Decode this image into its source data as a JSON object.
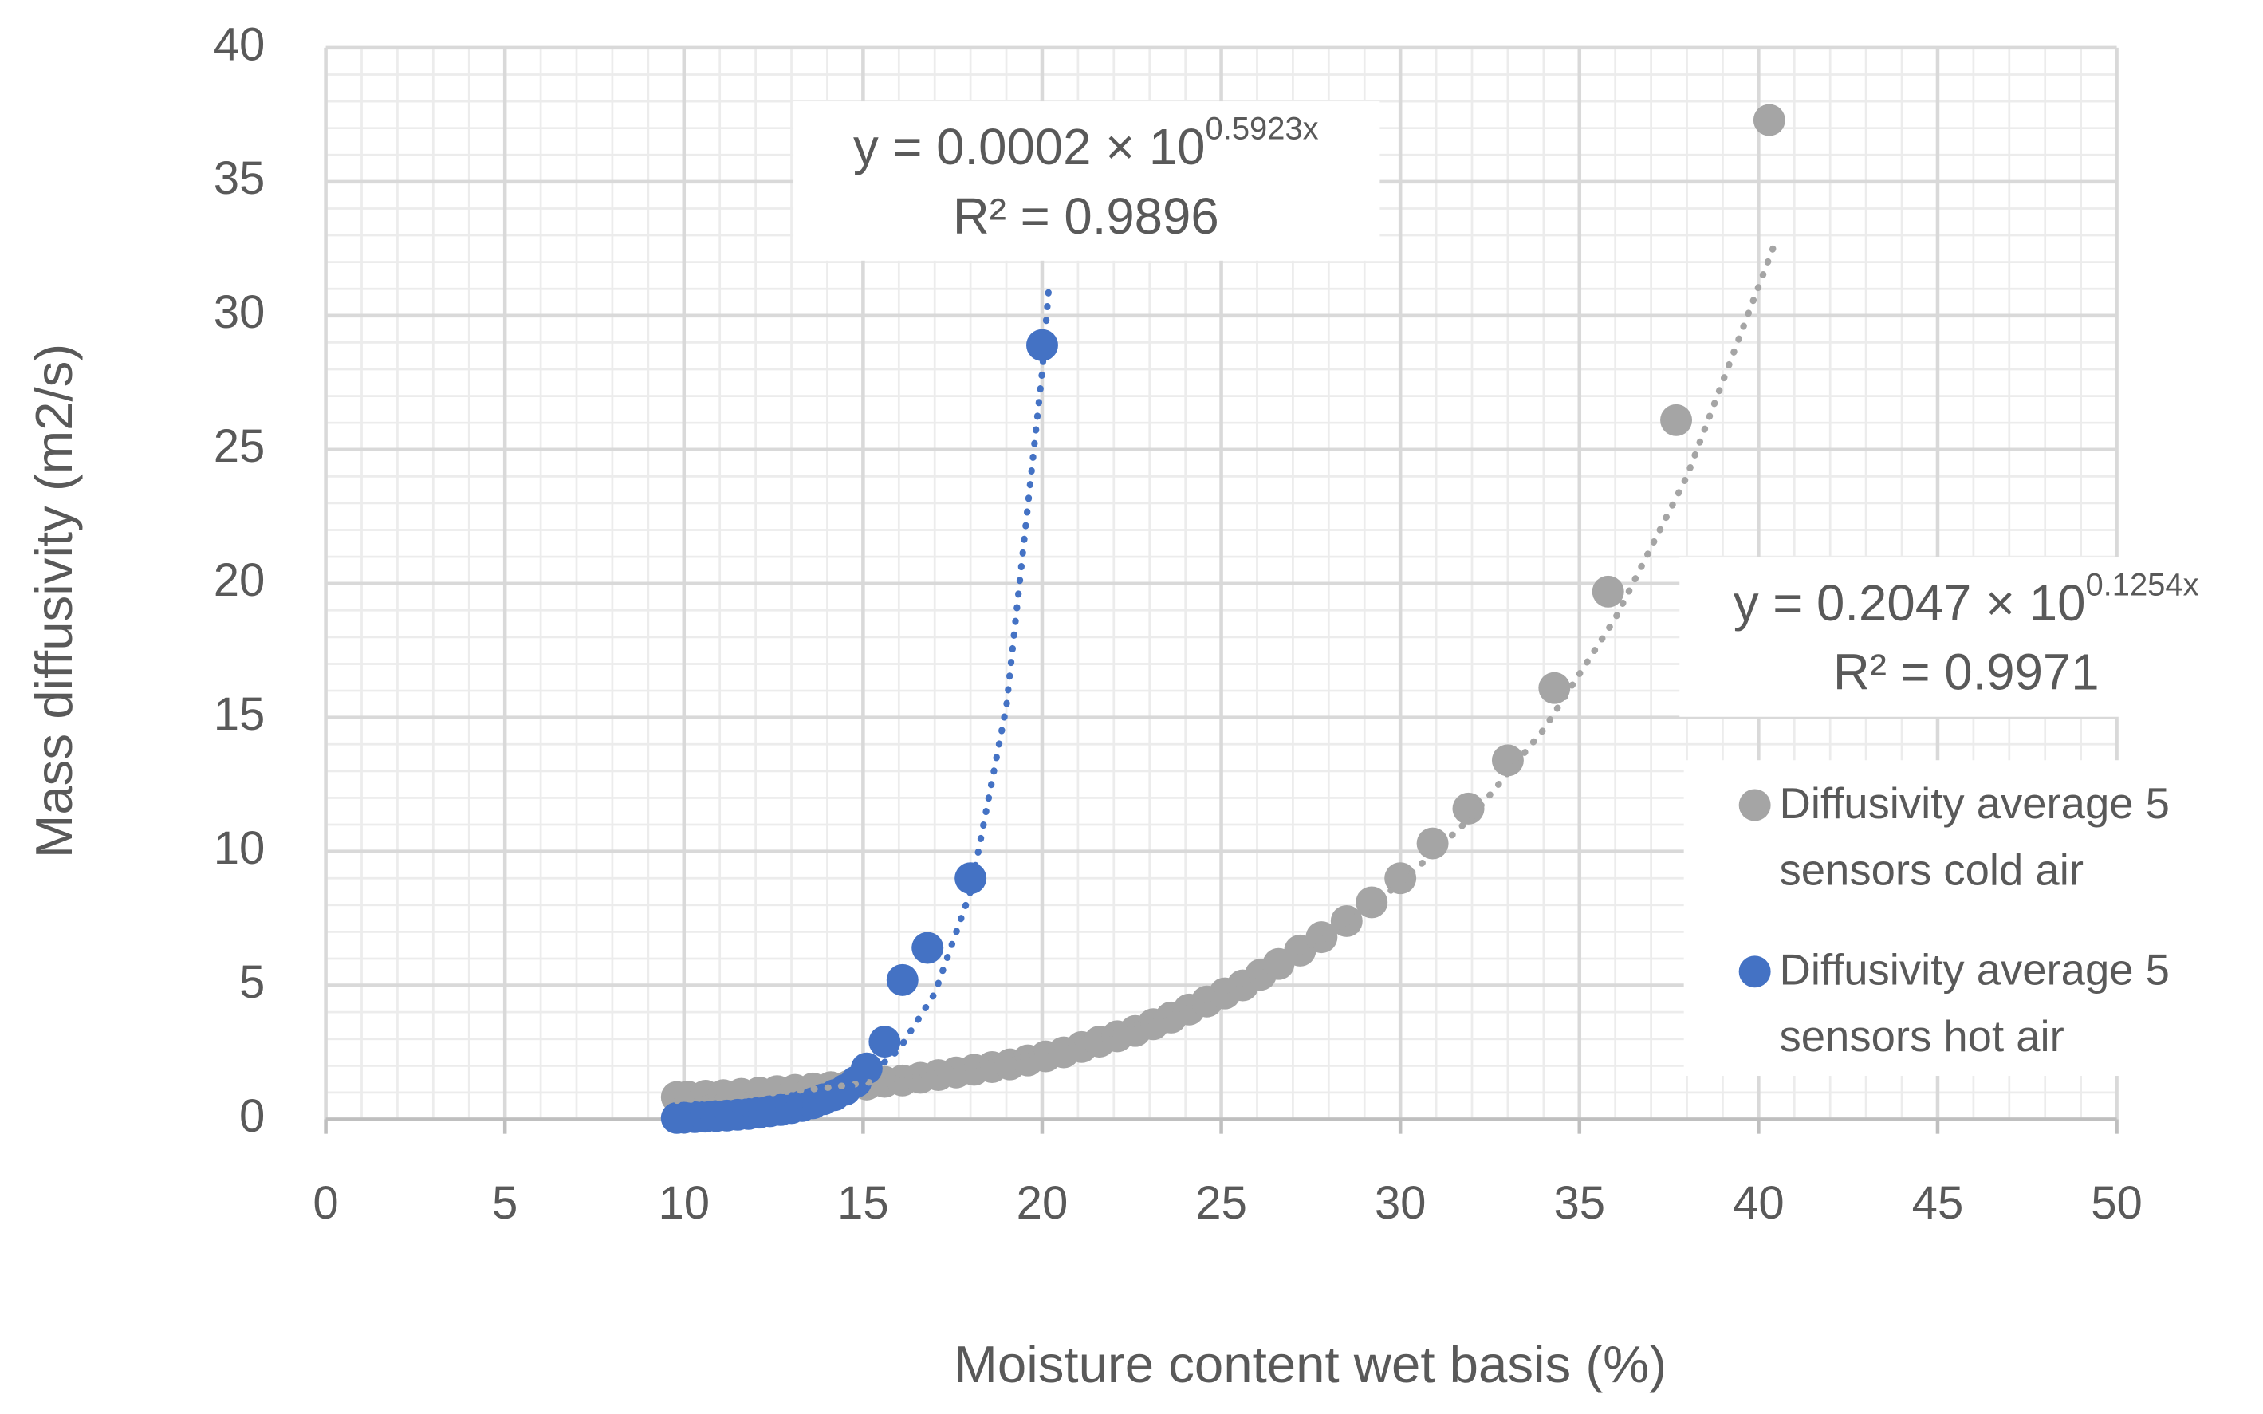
{
  "chart_data": {
    "type": "scatter",
    "x_label": "Moisture content wet basis (%)",
    "y_label": "Mass diffusivity  (m2/s)",
    "xlim": [
      0,
      50
    ],
    "xticks": [
      0,
      5,
      10,
      15,
      20,
      25,
      30,
      35,
      40,
      45,
      50
    ],
    "ylim": [
      0,
      40
    ],
    "yticks": [
      0,
      5,
      10,
      15,
      20,
      25,
      30,
      35,
      40
    ],
    "grid": true,
    "minor_grid": true,
    "legend": "right",
    "series": [
      {
        "name": "Diffusivity average 5 sensors cold air",
        "color": "#a5a5a5",
        "x": [
          9.8,
          10.1,
          10.6,
          11.1,
          11.6,
          12.1,
          12.6,
          13.1,
          13.6,
          14.1,
          14.6,
          15.1,
          15.6,
          16.1,
          16.6,
          17.1,
          17.6,
          18.1,
          18.6,
          19.1,
          19.6,
          20.1,
          20.6,
          21.1,
          21.6,
          22.1,
          22.6,
          23.1,
          23.6,
          24.1,
          24.6,
          25.1,
          25.6,
          26.1,
          26.6,
          27.2,
          27.8,
          28.5,
          29.2,
          30.0,
          30.9,
          31.9,
          33.0,
          34.3,
          35.8,
          37.7,
          40.3
        ],
        "values": [
          0.83,
          0.85,
          0.88,
          0.9,
          0.95,
          1.0,
          1.05,
          1.1,
          1.15,
          1.2,
          1.25,
          1.3,
          1.4,
          1.45,
          1.55,
          1.65,
          1.75,
          1.85,
          1.95,
          2.05,
          2.2,
          2.35,
          2.5,
          2.7,
          2.9,
          3.1,
          3.3,
          3.55,
          3.8,
          4.1,
          4.4,
          4.7,
          5.0,
          5.4,
          5.8,
          6.3,
          6.8,
          7.4,
          8.1,
          9.0,
          10.3,
          11.6,
          13.4,
          16.1,
          19.7,
          26.1,
          37.3
        ],
        "trendline": {
          "x": [
            9.8,
            12,
            14,
            16,
            18,
            20,
            22,
            24,
            26,
            28,
            30,
            32,
            34,
            36,
            38,
            40.4
          ],
          "values": [
            0.7,
            0.92,
            1.18,
            1.52,
            1.96,
            2.51,
            3.23,
            4.15,
            5.33,
            6.85,
            8.8,
            11.3,
            14.55,
            18.7,
            24.0,
            32.5
          ]
        },
        "equation": {
          "text": "y = 0.2047 × 10",
          "superscript": "0.1254x",
          "r2": "R² = 0.9971"
        }
      },
      {
        "name": "Diffusivity average 5 sensors hot air",
        "color": "#4472c4",
        "x": [
          9.8,
          10.0,
          10.3,
          10.6,
          10.9,
          11.2,
          11.5,
          11.8,
          12.1,
          12.4,
          12.7,
          13.0,
          13.3,
          13.6,
          13.9,
          14.2,
          14.5,
          14.8,
          15.1,
          15.6,
          16.1,
          16.8,
          18.0,
          20.0
        ],
        "values": [
          0.05,
          0.06,
          0.08,
          0.1,
          0.12,
          0.14,
          0.17,
          0.2,
          0.25,
          0.3,
          0.35,
          0.42,
          0.5,
          0.6,
          0.75,
          0.9,
          1.1,
          1.4,
          1.9,
          2.9,
          5.2,
          6.4,
          9.0,
          28.9
        ],
        "trendline": {
          "x": [
            9.8,
            11,
            12,
            13,
            14,
            15,
            16,
            17,
            18,
            19,
            20,
            20.2
          ],
          "values": [
            0.066,
            0.135,
            0.245,
            0.44,
            0.8,
            1.44,
            2.6,
            4.7,
            8.5,
            15.4,
            27.9,
            31.3
          ]
        },
        "equation": {
          "text": "y = 0.0002 × 10",
          "superscript": "0.5923x",
          "r2": "R² = 0.9896"
        }
      }
    ]
  }
}
